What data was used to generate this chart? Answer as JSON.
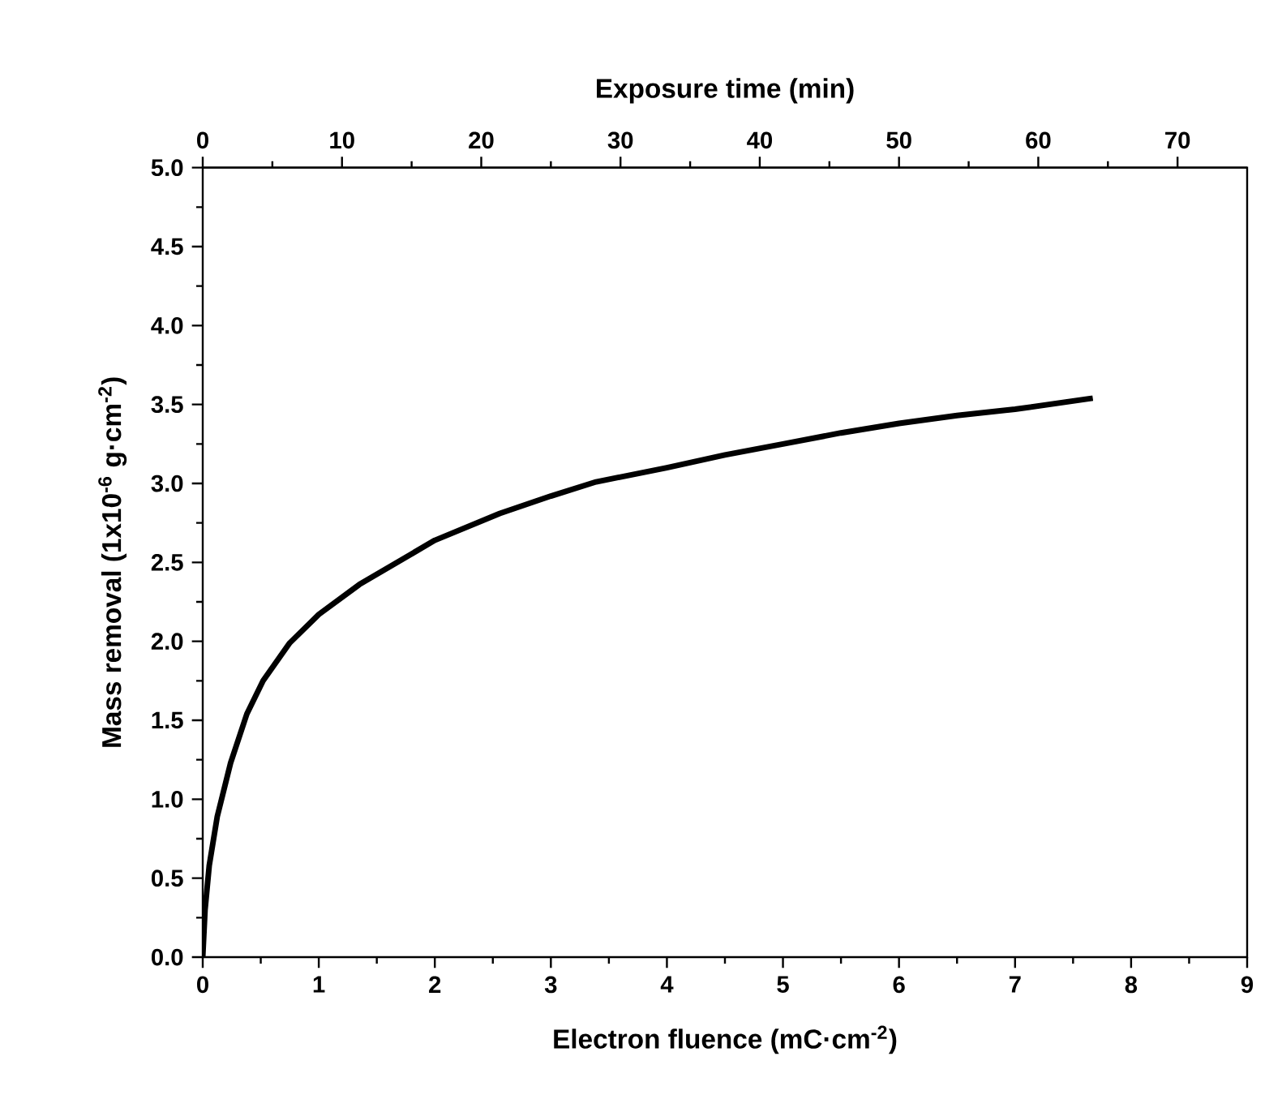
{
  "chart_data": {
    "type": "line",
    "xlabel": "Electron fluence (mC·cm$^{-2}$)",
    "ylabel": "Mass removal (1x10$^{-6}$ g·cm$^{-2}$)",
    "x2label": "Exposure time (min)",
    "xlim": [
      0,
      9
    ],
    "xticks": [
      0,
      1,
      2,
      3,
      4,
      5,
      6,
      7,
      8,
      9
    ],
    "x2lim": [
      0,
      75
    ],
    "x2ticks": [
      0,
      10,
      20,
      30,
      40,
      50,
      60,
      70
    ],
    "ylim": [
      0,
      5
    ],
    "yticks": [
      {
        "value": 0,
        "label": "0.0"
      },
      0.5,
      {
        "value": 1,
        "label": "1.0"
      },
      1.5,
      {
        "value": 2,
        "label": "2.0"
      },
      2.5,
      {
        "value": 3,
        "label": "3.0"
      },
      3.5,
      {
        "value": 4,
        "label": "4.0"
      },
      4.5,
      {
        "value": 5,
        "label": "5.0"
      }
    ],
    "series": [
      {
        "color": "#000000",
        "marker": "none",
        "line_style": "solid",
        "x": [
          0,
          0.02,
          0.056,
          0.125,
          0.24,
          0.38,
          0.52,
          0.75,
          1.0,
          1.35,
          2.0,
          2.56,
          3.0,
          3.39,
          4.0,
          4.5,
          5.0,
          5.5,
          6.0,
          6.5,
          7.0,
          7.67
        ],
        "values": [
          0,
          0.3,
          0.58,
          0.89,
          1.23,
          1.54,
          1.75,
          1.99,
          2.17,
          2.36,
          2.64,
          2.81,
          2.92,
          3.01,
          3.1,
          3.18,
          3.25,
          3.32,
          3.38,
          3.43,
          3.47,
          3.54
        ]
      }
    ],
    "grid": false
  }
}
